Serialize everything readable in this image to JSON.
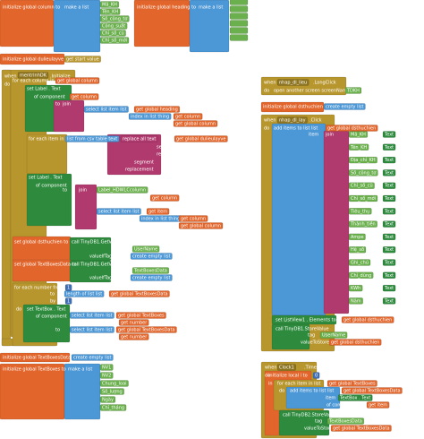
{
  "groups": [
    {
      "labels": [
        "initialize global column to",
        "make a list",
        "Mã_KH",
        "Tên_KH",
        "Số_công_tơ",
        "Công_suất",
        "Chỉ_số_cũ",
        "Chỉ_số_mới"
      ]
    },
    {
      "labels": [
        "initialize global heading to",
        "make a list"
      ]
    },
    {
      "labels": [
        "initialize global dulieulayve to",
        "get start value"
      ]
    },
    {
      "labels": [
        "when",
        "mentrinhDK",
        ".Initialize",
        "do",
        "for each column in list",
        "get global column",
        "set Label . Text",
        "of component",
        "get column",
        "to",
        "join",
        "select list item list",
        "get global heading",
        "index",
        "index in list thing",
        "get column",
        "list",
        "get global column",
        "for each item in list",
        "list from csv table text",
        "replace all text",
        "get global dulieulayve",
        "segment",
        "replacement",
        "segment",
        "replacement",
        "set Label . Text",
        "of component",
        "to",
        "join",
        "Label_HDWLCcolumn",
        "get column",
        "select list item list",
        "get item",
        "index",
        "index in list thing",
        "get column",
        "list",
        "get global column",
        "set global dsthuchien to",
        "call TinyDB1.GetValue",
        "tag",
        "UserName",
        "valueIfTagNotThere",
        "create empty list",
        "set global TextBoxesData to",
        "call TinyDB1.GetValue",
        "tag",
        "TextBoxesData",
        "valueIfTagNotThere",
        "create empty list",
        "for each number from",
        "1",
        "to",
        "length of list list",
        "get global TextBoxesData",
        "by",
        "1",
        "do",
        "set TextBox . Text",
        "of component",
        "select list item list",
        "get global TextBoxes",
        "index",
        "get number",
        "to",
        "select list item list",
        "get global TextBoxesData",
        "index",
        "get number"
      ]
    },
    {
      "labels": [
        "when",
        "nhap_dl_lieu",
        ".LongClick",
        "do",
        "open another screen screenName",
        "TDKH"
      ]
    },
    {
      "labels": [
        "initialize global dsthuchien to",
        "create empty list"
      ]
    },
    {
      "labels": [
        "when",
        "nhap_dl_lay",
        ".Click",
        "do",
        "add items to list list",
        "get global dsthuchien",
        "item",
        "join",
        "Mã_KH",
        "Text",
        "Tên_KH",
        "Text",
        "Địa_chỉ_KH",
        "Text",
        "Số_công_tơ",
        "Text",
        "Chỉ_số_cũ",
        "Text",
        "Chỉ_số_mới",
        "Text",
        "Tiêu_thụ",
        "Text",
        "Thành_tiền",
        "Text",
        "Ampe",
        "Text",
        "Hệ_số",
        "Text",
        "Ghi_chú",
        "Text",
        "Chỉ_dùng",
        "Text",
        "KWh",
        "Text",
        "Năm",
        "Text",
        "set ListView1 . Elements to",
        "get global dsthuchien",
        "call TinyDB1.StoreValue",
        "tag",
        "UserName",
        "valueToStore",
        "get global dsthuchien"
      ]
    },
    {
      "labels": [
        "initialize global TextBoxesData to",
        "create empty list",
        "initialize global TextBoxes to",
        "make a list",
        "NV1",
        "NV2",
        "Chung_loai",
        "Số_lượng",
        "Ngày",
        "Chỉ_tháng"
      ]
    },
    {
      "labels": [
        "when",
        "Clock1",
        ".Timer",
        "do",
        "initialize local i to",
        "0",
        "in",
        "for each item in list",
        "get global TextBoxes",
        "do",
        "add items to list list",
        "get global TextBoxesData",
        "item",
        "TextBox . Text",
        "of component",
        "get item",
        "call TinyDB2.StoreValue",
        "tag",
        "TextBoxesData",
        "valueToStore",
        "get global TextBoxesData"
      ]
    }
  ]
}
